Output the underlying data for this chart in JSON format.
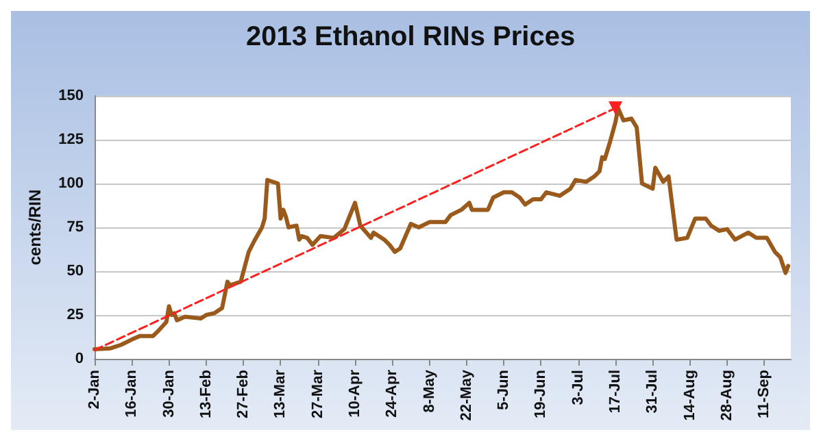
{
  "chart_data": {
    "type": "line",
    "title": "2013 Ethanol RINs Prices",
    "ylabel": "cents/RIN",
    "xlim": [
      "2013-01-02",
      "2013-09-21"
    ],
    "ylim": [
      0,
      150
    ],
    "yticks": [
      0,
      25,
      50,
      75,
      100,
      125,
      150
    ],
    "xticks": [
      {
        "value": "2013-01-02",
        "label": "2-Jan"
      },
      {
        "value": "2013-01-16",
        "label": "16-Jan"
      },
      {
        "value": "2013-01-30",
        "label": "30-Jan"
      },
      {
        "value": "2013-02-13",
        "label": "13-Feb"
      },
      {
        "value": "2013-02-27",
        "label": "27-Feb"
      },
      {
        "value": "2013-03-13",
        "label": "13-Mar"
      },
      {
        "value": "2013-03-27",
        "label": "27-Mar"
      },
      {
        "value": "2013-04-10",
        "label": "10-Apr"
      },
      {
        "value": "2013-04-24",
        "label": "24-Apr"
      },
      {
        "value": "2013-05-08",
        "label": "8-May"
      },
      {
        "value": "2013-05-22",
        "label": "22-May"
      },
      {
        "value": "2013-06-05",
        "label": "5-Jun"
      },
      {
        "value": "2013-06-19",
        "label": "19-Jun"
      },
      {
        "value": "2013-07-03",
        "label": "3-Jul"
      },
      {
        "value": "2013-07-17",
        "label": "17-Jul"
      },
      {
        "value": "2013-07-31",
        "label": "31-Jul"
      },
      {
        "value": "2013-08-14",
        "label": "14-Aug"
      },
      {
        "value": "2013-08-28",
        "label": "28-Aug"
      },
      {
        "value": "2013-09-11",
        "label": "11-Sep"
      }
    ],
    "grid": "y",
    "marker": "none",
    "line_style": "solid",
    "series": [
      {
        "color": "#9a5a1c",
        "x": [
          "2013-01-02",
          "2013-01-08",
          "2013-01-12",
          "2013-01-16",
          "2013-01-19",
          "2013-01-24",
          "2013-01-26",
          "2013-01-29",
          "2013-01-30",
          "2013-01-31",
          "2013-02-01",
          "2013-02-02",
          "2013-02-05",
          "2013-02-11",
          "2013-02-13",
          "2013-02-16",
          "2013-02-19",
          "2013-02-21",
          "2013-02-22",
          "2013-02-26",
          "2013-03-01",
          "2013-03-03",
          "2013-03-06",
          "2013-03-07",
          "2013-03-08",
          "2013-03-12",
          "2013-03-13",
          "2013-03-14",
          "2013-03-15",
          "2013-03-16",
          "2013-03-19",
          "2013-03-20",
          "2013-03-21",
          "2013-03-23",
          "2013-03-25",
          "2013-03-28",
          "2013-04-02",
          "2013-04-06",
          "2013-04-10",
          "2013-04-12",
          "2013-04-16",
          "2013-04-17",
          "2013-04-21",
          "2013-04-23",
          "2013-04-25",
          "2013-04-27",
          "2013-05-01",
          "2013-05-04",
          "2013-05-08",
          "2013-05-14",
          "2013-05-16",
          "2013-05-20",
          "2013-05-23",
          "2013-05-24",
          "2013-05-30",
          "2013-06-01",
          "2013-06-05",
          "2013-06-08",
          "2013-06-11",
          "2013-06-13",
          "2013-06-16",
          "2013-06-19",
          "2013-06-21",
          "2013-06-26",
          "2013-06-30",
          "2013-07-02",
          "2013-07-06",
          "2013-07-09",
          "2013-07-11",
          "2013-07-12",
          "2013-07-13",
          "2013-07-15",
          "2013-07-17",
          "2013-07-18",
          "2013-07-20",
          "2013-07-23",
          "2013-07-25",
          "2013-07-27",
          "2013-07-31",
          "2013-08-01",
          "2013-08-04",
          "2013-08-06",
          "2013-08-09",
          "2013-08-13",
          "2013-08-16",
          "2013-08-20",
          "2013-08-22",
          "2013-08-25",
          "2013-08-28",
          "2013-08-31",
          "2013-09-05",
          "2013-09-08",
          "2013-09-12",
          "2013-09-15",
          "2013-09-17",
          "2013-09-19",
          "2013-09-20"
        ],
        "values": [
          5.5,
          6,
          8,
          11,
          13,
          13,
          16,
          21,
          30,
          25,
          26,
          22,
          24,
          23,
          25,
          26,
          29,
          44,
          42,
          44,
          61,
          67,
          75,
          80,
          102,
          100,
          80,
          85,
          81,
          75,
          76,
          68,
          70,
          69,
          65,
          70,
          69,
          74,
          89,
          76,
          69,
          72,
          68,
          65,
          61,
          63,
          77,
          75,
          78,
          78,
          82,
          85,
          89,
          85,
          85,
          92,
          95,
          95,
          92,
          88,
          91,
          91,
          95,
          93,
          97,
          102,
          101,
          104,
          107,
          115,
          114,
          124,
          135,
          143,
          136,
          137,
          132,
          100,
          97,
          109,
          101,
          104,
          68,
          69,
          80,
          80,
          76,
          73,
          74,
          68,
          72,
          69,
          69,
          61,
          58,
          49,
          53
        ]
      },
      {
        "type": "line",
        "color": "#ff2020",
        "line_style": "dashed",
        "marker": "triangle",
        "x": [
          "2013-01-02",
          "2013-07-17"
        ],
        "values": [
          5,
          143
        ]
      }
    ]
  }
}
